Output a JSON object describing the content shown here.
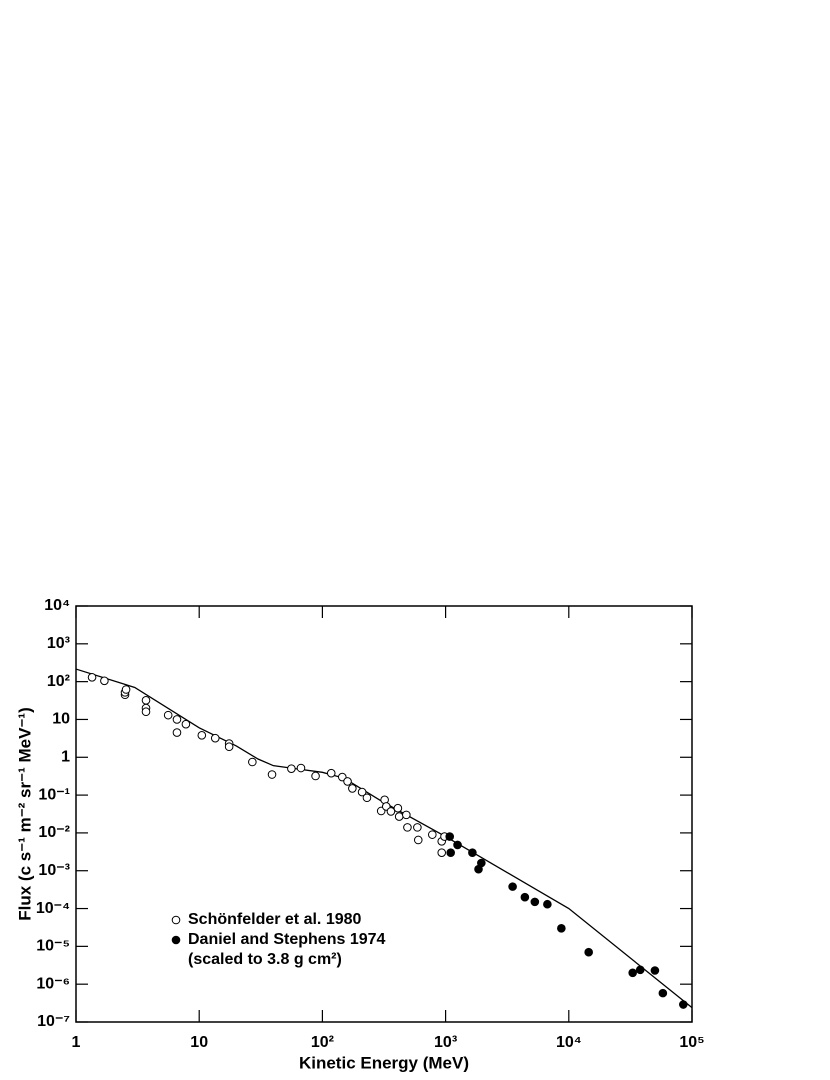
{
  "chart_data": {
    "type": "scatter",
    "xlabel": "Kinetic Energy (MeV)",
    "ylabel": "Flux (c s⁻¹ m⁻² sr⁻¹ MeV⁻¹)",
    "log_x": true,
    "log_y": true,
    "xlim": [
      1,
      100000
    ],
    "ylim": [
      1e-07,
      10000
    ],
    "xticks": [
      1,
      10,
      {
        "value": 100,
        "label": "10²"
      },
      {
        "value": 1000,
        "label": "10³"
      },
      {
        "value": 10000,
        "label": "10⁴"
      },
      {
        "value": 100000,
        "label": "10⁵"
      }
    ],
    "yticks": [
      {
        "value": 10000,
        "label": "10⁴"
      },
      {
        "value": 1000,
        "label": "10³"
      },
      {
        "value": 100,
        "label": "10²"
      },
      10,
      1,
      {
        "value": 0.1,
        "label": "10⁻¹"
      },
      {
        "value": 0.01,
        "label": "10⁻²"
      },
      {
        "value": 0.001,
        "label": "10⁻³"
      },
      {
        "value": 0.0001,
        "label": "10⁻⁴"
      },
      {
        "value": 1e-05,
        "label": "10⁻⁵"
      },
      {
        "value": 1e-06,
        "label": "10⁻⁶"
      },
      {
        "value": 1e-07,
        "label": "10⁻⁷"
      }
    ],
    "series": [
      {
        "name": "Schönfelder et al. 1980",
        "marker": "open",
        "color": "#000000",
        "x": [
          1.35,
          1.7,
          2.5,
          2.5,
          2.55,
          3.7,
          3.7,
          3.7,
          5.6,
          6.6,
          6.6,
          7.8,
          10.5,
          13.5,
          17.5,
          17.5,
          27,
          39,
          56,
          67,
          88,
          118,
          145,
          160,
          175,
          210,
          230,
          300,
          320,
          330,
          360,
          410,
          420,
          480,
          490,
          590,
          600,
          780,
          930,
          930,
          980
        ],
        "values": [
          130,
          105,
          45,
          52,
          62,
          32,
          20,
          16,
          13,
          4.5,
          10,
          7.5,
          3.8,
          3.2,
          2.3,
          1.9,
          0.75,
          0.35,
          0.5,
          0.52,
          0.32,
          0.38,
          0.3,
          0.23,
          0.15,
          0.12,
          0.085,
          0.038,
          0.075,
          0.05,
          0.037,
          0.045,
          0.027,
          0.03,
          0.014,
          0.014,
          0.0065,
          0.009,
          0.006,
          0.003,
          0.008
        ]
      },
      {
        "name": "Daniel and Stephens 1974",
        "marker": "filled",
        "color": "#000000",
        "x": [
          1080,
          1100,
          1250,
          1650,
          1850,
          1950,
          3500,
          4400,
          5300,
          6700,
          8700,
          14500,
          33000,
          38000,
          50000,
          58000,
          85000
        ],
        "values": [
          0.008,
          0.003,
          0.0048,
          0.003,
          0.0011,
          0.0016,
          0.00038,
          0.0002,
          0.00015,
          0.00013,
          3e-05,
          7e-06,
          2e-06,
          2.4e-06,
          2.3e-06,
          5.8e-07,
          2.9e-07
        ]
      }
    ],
    "legend_note": "(scaled to 3.8 g cm²)",
    "curve": {
      "color": "#000000",
      "x": [
        1,
        3,
        10,
        20,
        30,
        40,
        60,
        100,
        150,
        300,
        1000,
        10000,
        100000
      ],
      "values": [
        215,
        70,
        6,
        2,
        0.9,
        0.6,
        0.5,
        0.4,
        0.28,
        0.07,
        0.008,
        0.0001,
        2.4e-07
      ]
    }
  }
}
